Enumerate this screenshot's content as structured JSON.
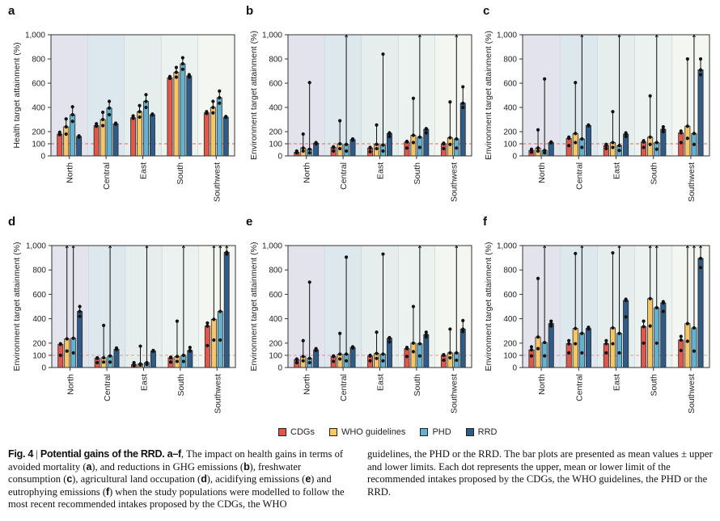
{
  "figure": {
    "legend": [
      {
        "name": "CDGs",
        "color": "#e2574c"
      },
      {
        "name": "WHO guidelines",
        "color": "#f6c667"
      },
      {
        "name": "PHD",
        "color": "#63b3d0"
      },
      {
        "name": "RRD",
        "color": "#2f5b88"
      }
    ],
    "region_band_colors": [
      "#e2e3ec",
      "#dde8ee",
      "#e6eeed",
      "#ecf2ef",
      "#f4f6f1"
    ],
    "reference_line_color": "#e2574c",
    "caption": {
      "fig_label": "Fig. 4",
      "title": "Potential gains of the RRD.",
      "panels_ref": "a–f",
      "text_left": ", The impact on health gains in terms of avoided mortality (",
      "a": "a",
      "t2": "), and reductions in GHG emissions (",
      "b": "b",
      "t3": "), freshwater consumption (",
      "c": "c",
      "t4": "), agricultural land occupation (",
      "d": "d",
      "t5": "), acidifying emissions (",
      "e": "e",
      "t6": ") and eutrophying emissions (",
      "f": "f",
      "t7": ") when the study populations were modelled to follow the most recent recommended intakes proposed by the CDGs, the WHO",
      "text_right": "guidelines, the PHD or the RRD. The bar plots are presented as mean values ± upper and lower limits. Each dot represents the upper, mean or lower limit of the recommended intakes proposed by the CDGs, the WHO guidelines, the PHD or the RRD."
    }
  },
  "chart_data": [
    {
      "panel": "a",
      "type": "bar",
      "ylabel": "Health target attainment (%)",
      "categories": [
        "North",
        "Central",
        "East",
        "South",
        "Southwest"
      ],
      "yticks": [
        0,
        100,
        200,
        400,
        600,
        800,
        1000
      ],
      "ytick_labels": [
        "0",
        "100",
        "200",
        "400",
        "600",
        "800",
        "1,000"
      ],
      "ylim": [
        0,
        1000
      ],
      "reference_line": 100,
      "series": [
        {
          "name": "CDGs",
          "mean": [
            180,
            250,
            315,
            645,
            355
          ],
          "lower": [
            175,
            245,
            310,
            640,
            350
          ],
          "upper": [
            195,
            265,
            330,
            655,
            365
          ]
        },
        {
          "name": "WHO guidelines",
          "mean": [
            240,
            300,
            365,
            690,
            400
          ],
          "lower": [
            180,
            250,
            320,
            650,
            355
          ],
          "upper": [
            305,
            360,
            415,
            730,
            450
          ]
        },
        {
          "name": "PHD",
          "mean": [
            340,
            395,
            450,
            760,
            480
          ],
          "lower": [
            285,
            340,
            400,
            715,
            435
          ],
          "upper": [
            405,
            450,
            505,
            810,
            535
          ]
        },
        {
          "name": "RRD",
          "mean": [
            160,
            265,
            340,
            660,
            320
          ],
          "lower": [
            155,
            262,
            338,
            650,
            318
          ],
          "upper": [
            165,
            270,
            345,
            670,
            325
          ]
        }
      ]
    },
    {
      "panel": "b",
      "type": "bar",
      "ylabel": "Environment target attainment (%)",
      "categories": [
        "North",
        "Central",
        "East",
        "South",
        "Southwest"
      ],
      "yticks": [
        0,
        100,
        200,
        400,
        600,
        800,
        1000
      ],
      "ytick_labels": [
        "0",
        "100",
        "200",
        "400",
        "600",
        "800",
        "1,000"
      ],
      "ylim": [
        0,
        1000
      ],
      "reference_line": 100,
      "series": [
        {
          "name": "CDGs",
          "mean": [
            30,
            70,
            65,
            115,
            100
          ],
          "lower": [
            25,
            40,
            35,
            65,
            60
          ],
          "upper": [
            40,
            75,
            70,
            120,
            105
          ]
        },
        {
          "name": "WHO guidelines",
          "mean": [
            65,
            100,
            95,
            170,
            150
          ],
          "lower": [
            40,
            60,
            60,
            110,
            95
          ],
          "upper": [
            180,
            290,
            255,
            475,
            445
          ]
        },
        {
          "name": "PHD",
          "mean": [
            55,
            95,
            90,
            155,
            140
          ],
          "lower": [
            25,
            40,
            40,
            70,
            65
          ],
          "upper": [
            605,
            1000,
            840,
            1000,
            1000
          ]
        },
        {
          "name": "RRD",
          "mean": [
            105,
            135,
            185,
            220,
            435
          ],
          "lower": [
            100,
            130,
            160,
            190,
            400
          ],
          "upper": [
            110,
            140,
            190,
            225,
            570
          ]
        }
      ]
    },
    {
      "panel": "c",
      "type": "bar",
      "ylabel": "Environment target attainment (%)",
      "categories": [
        "North",
        "Central",
        "East",
        "South",
        "Southwest"
      ],
      "yticks": [
        0,
        100,
        200,
        400,
        600,
        800,
        1000
      ],
      "ytick_labels": [
        "0",
        "100",
        "200",
        "400",
        "600",
        "800",
        "1,000"
      ],
      "ylim": [
        0,
        1000
      ],
      "reference_line": 100,
      "series": [
        {
          "name": "CDGs",
          "mean": [
            45,
            145,
            85,
            115,
            190
          ],
          "lower": [
            30,
            85,
            60,
            70,
            110
          ],
          "upper": [
            55,
            155,
            95,
            125,
            205
          ]
        },
        {
          "name": "WHO guidelines",
          "mean": [
            65,
            185,
            110,
            155,
            245
          ],
          "lower": [
            40,
            110,
            70,
            95,
            145
          ],
          "upper": [
            215,
            605,
            365,
            495,
            800
          ]
        },
        {
          "name": "PHD",
          "mean": [
            45,
            140,
            85,
            110,
            185
          ],
          "lower": [
            25,
            70,
            45,
            55,
            95
          ],
          "upper": [
            635,
            1000,
            1000,
            1000,
            1000
          ]
        },
        {
          "name": "RRD",
          "mean": [
            110,
            250,
            180,
            220,
            710
          ],
          "lower": [
            108,
            248,
            160,
            200,
            670
          ],
          "upper": [
            115,
            255,
            190,
            240,
            800
          ]
        }
      ]
    },
    {
      "panel": "d",
      "type": "bar",
      "ylabel": "Environment target attainment (%)",
      "categories": [
        "North",
        "Central",
        "East",
        "South",
        "Southwest"
      ],
      "yticks": [
        0,
        100,
        200,
        400,
        600,
        800,
        1000
      ],
      "ytick_labels": [
        "0",
        "100",
        "200",
        "400",
        "600",
        "800",
        "1,000"
      ],
      "ylim": [
        0,
        1000
      ],
      "reference_line": 100,
      "series": [
        {
          "name": "CDGs",
          "mean": [
            190,
            75,
            25,
            80,
            340
          ],
          "lower": [
            100,
            40,
            15,
            45,
            180
          ],
          "upper": [
            195,
            80,
            40,
            85,
            365
          ]
        },
        {
          "name": "WHO guidelines",
          "mean": [
            235,
            80,
            30,
            90,
            395
          ],
          "lower": [
            135,
            45,
            20,
            50,
            225
          ],
          "upper": [
            1000,
            345,
            175,
            380,
            1000
          ]
        },
        {
          "name": "PHD",
          "mean": [
            240,
            95,
            40,
            100,
            460
          ],
          "lower": [
            120,
            45,
            25,
            50,
            225
          ],
          "upper": [
            1000,
            1000,
            1000,
            1000,
            1000
          ]
        },
        {
          "name": "RRD",
          "mean": [
            460,
            150,
            135,
            140,
            945
          ],
          "lower": [
            420,
            148,
            133,
            135,
            930
          ],
          "upper": [
            500,
            160,
            140,
            165,
            1000
          ]
        }
      ]
    },
    {
      "panel": "e",
      "type": "bar",
      "ylabel": "Environment target attainment (%)",
      "categories": [
        "North",
        "Central",
        "East",
        "South",
        "Southwest"
      ],
      "yticks": [
        0,
        100,
        200,
        400,
        600,
        800,
        1000
      ],
      "ytick_labels": [
        "0",
        "100",
        "200",
        "400",
        "600",
        "800",
        "1,000"
      ],
      "ylim": [
        0,
        1000
      ],
      "reference_line": 100,
      "series": [
        {
          "name": "CDGs",
          "mean": [
            65,
            90,
            95,
            155,
            100
          ],
          "lower": [
            40,
            50,
            55,
            90,
            60
          ],
          "upper": [
            70,
            95,
            100,
            165,
            105
          ]
        },
        {
          "name": "WHO guidelines",
          "mean": [
            90,
            110,
            115,
            200,
            120
          ],
          "lower": [
            55,
            70,
            75,
            130,
            80
          ],
          "upper": [
            220,
            280,
            290,
            500,
            315
          ]
        },
        {
          "name": "PHD",
          "mean": [
            75,
            110,
            110,
            195,
            120
          ],
          "lower": [
            40,
            55,
            55,
            95,
            60
          ],
          "upper": [
            700,
            905,
            930,
            1000,
            1000
          ]
        },
        {
          "name": "RRD",
          "mean": [
            145,
            165,
            240,
            270,
            315
          ],
          "lower": [
            140,
            160,
            210,
            250,
            295
          ],
          "upper": [
            155,
            170,
            245,
            290,
            385
          ]
        }
      ]
    },
    {
      "panel": "f",
      "type": "bar",
      "ylabel": "Environment target attainment (%)",
      "categories": [
        "North",
        "Central",
        "East",
        "South",
        "Southwest"
      ],
      "yticks": [
        0,
        100,
        200,
        400,
        600,
        800,
        1000
      ],
      "ytick_labels": [
        "0",
        "100",
        "200",
        "400",
        "600",
        "800",
        "1,000"
      ],
      "ylim": [
        0,
        1000
      ],
      "reference_line": 100,
      "series": [
        {
          "name": "CDGs",
          "mean": [
            145,
            195,
            195,
            335,
            225
          ],
          "lower": [
            95,
            120,
            120,
            200,
            140
          ],
          "upper": [
            170,
            220,
            220,
            380,
            255
          ]
        },
        {
          "name": "WHO guidelines",
          "mean": [
            250,
            320,
            325,
            565,
            360
          ],
          "lower": [
            155,
            195,
            195,
            340,
            215
          ],
          "upper": [
            730,
            935,
            940,
            1000,
            1000
          ]
        },
        {
          "name": "PHD",
          "mean": [
            205,
            280,
            280,
            490,
            325
          ],
          "lower": [
            95,
            120,
            120,
            200,
            135
          ],
          "upper": [
            1000,
            1000,
            1000,
            1000,
            1000
          ]
        },
        {
          "name": "RRD",
          "mean": [
            360,
            320,
            550,
            530,
            895
          ],
          "lower": [
            340,
            315,
            415,
            460,
            820
          ],
          "upper": [
            380,
            330,
            560,
            540,
            1000
          ]
        }
      ]
    }
  ]
}
